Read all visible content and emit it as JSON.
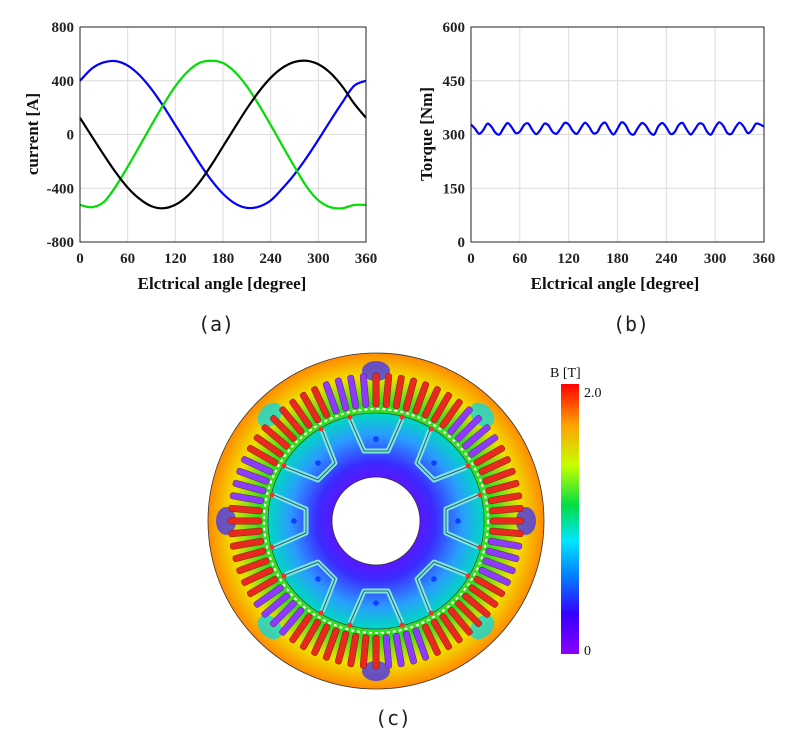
{
  "colors": {
    "phase_a": "#0000ff",
    "phase_b": "#00dd00",
    "phase_c": "#000000",
    "torque": "#0000ff",
    "stator_slot": "#e82a1e",
    "stator_ring": "#ff7f00",
    "rotor_core": "#8a00ff"
  },
  "chart_data": [
    {
      "type": "line",
      "caption": "(a)",
      "xlabel": "Elctrical angle [degree]",
      "ylabel": "current [A]",
      "xlim": [
        0,
        360
      ],
      "ylim": [
        -800,
        800
      ],
      "xticks": [
        0,
        60,
        120,
        180,
        240,
        300,
        360
      ],
      "yticks": [
        -800,
        -400,
        0,
        400,
        800
      ],
      "xtick_labels": [
        "0",
        "60",
        "120",
        "180",
        "240",
        "300",
        "360"
      ],
      "ytick_labels": [
        "-800",
        "-400",
        "0",
        "400",
        "800"
      ],
      "grid": true,
      "x": [
        0,
        15,
        30,
        45,
        60,
        75,
        90,
        105,
        120,
        135,
        150,
        165,
        180,
        195,
        210,
        225,
        240,
        255,
        270,
        285,
        300,
        315,
        330,
        345,
        360
      ],
      "series": [
        {
          "color": "#0000ff",
          "values": [
            400,
            491,
            537,
            546,
            513,
            441,
            337,
            210,
            70,
            -70,
            -210,
            -337,
            -441,
            -513,
            -546,
            -537,
            -491,
            -400,
            -296,
            -174,
            -39,
            101,
            237,
            362,
            400
          ]
        },
        {
          "color": "#00dd00",
          "values": [
            -524,
            -541,
            -502,
            -386,
            -240,
            -86,
            71,
            222,
            359,
            465,
            532,
            549,
            532,
            465,
            359,
            222,
            71,
            -86,
            -240,
            -386,
            -490,
            -541,
            -549,
            -524,
            -524
          ]
        },
        {
          "color": "#000000",
          "values": [
            124,
            -15,
            -152,
            -282,
            -395,
            -479,
            -534,
            -549,
            -523,
            -459,
            -359,
            -231,
            -89,
            53,
            192,
            318,
            422,
            497,
            540,
            549,
            523,
            459,
            359,
            231,
            124
          ]
        }
      ]
    },
    {
      "type": "line",
      "caption": "(b)",
      "xlabel": "Elctrical angle [degree]",
      "ylabel": "Torque [Nm]",
      "xlim": [
        0,
        360
      ],
      "ylim": [
        0,
        600
      ],
      "xticks": [
        0,
        60,
        120,
        180,
        240,
        300,
        360
      ],
      "yticks": [
        0,
        150,
        300,
        450,
        600
      ],
      "xtick_labels": [
        "0",
        "60",
        "120",
        "180",
        "240",
        "300",
        "360"
      ],
      "ytick_labels": [
        "0",
        "150",
        "300",
        "450",
        "600"
      ],
      "grid": true,
      "mean": 316,
      "ripple_amplitude": 16,
      "ripple_period_deg": 20,
      "series": [
        {
          "color": "#0000ff",
          "x": [
            0,
            5,
            10,
            15,
            20,
            25,
            30,
            35,
            40,
            45,
            50,
            55,
            60,
            65,
            70,
            75,
            80,
            85,
            90,
            95,
            100,
            105,
            110,
            115,
            120,
            125,
            130,
            135,
            140,
            145,
            150,
            155,
            160,
            165,
            170,
            175,
            180,
            185,
            190,
            195,
            200,
            205,
            210,
            215,
            220,
            225,
            230,
            235,
            240,
            245,
            250,
            255,
            260,
            265,
            270,
            275,
            280,
            285,
            290,
            295,
            300,
            305,
            310,
            315,
            320,
            325,
            330,
            335,
            340,
            345,
            350,
            355,
            360
          ],
          "values": [
            328,
            316,
            302,
            312,
            330,
            322,
            305,
            300,
            318,
            332,
            320,
            304,
            308,
            326,
            331,
            314,
            301,
            312,
            330,
            326,
            308,
            302,
            316,
            332,
            328,
            310,
            302,
            318,
            333,
            322,
            304,
            306,
            326,
            333,
            314,
            300,
            316,
            334,
            326,
            305,
            300,
            318,
            332,
            324,
            306,
            300,
            322,
            332,
            320,
            302,
            306,
            326,
            332,
            314,
            300,
            314,
            330,
            328,
            308,
            300,
            320,
            334,
            324,
            304,
            302,
            320,
            333,
            322,
            304,
            312,
            330,
            328,
            322
          ]
        }
      ]
    },
    {
      "type": "heatmap",
      "caption": "(c)",
      "colorbar_label": "B [T]",
      "colorbar_range": [
        0,
        2.0
      ],
      "colorbar_tick_labels": [
        "2.0",
        "0"
      ]
    }
  ]
}
